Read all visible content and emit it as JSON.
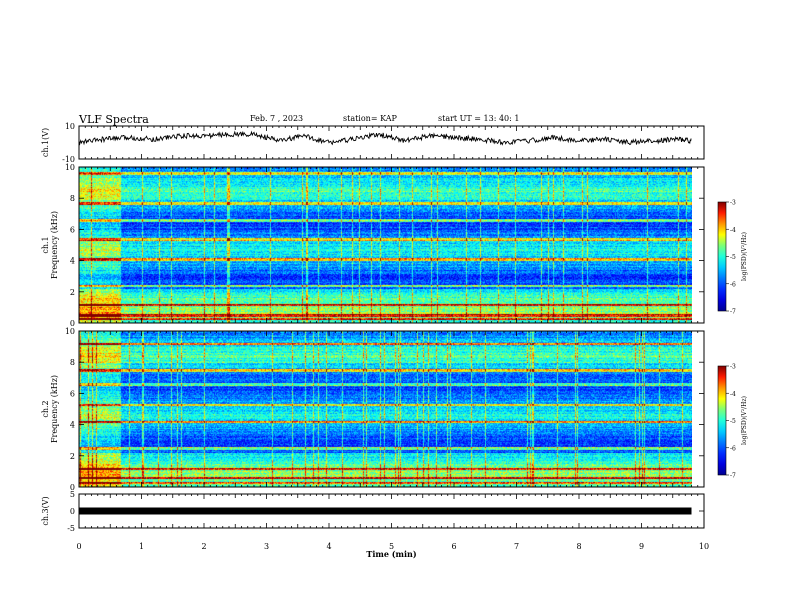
{
  "header": {
    "title": "VLF Spectra",
    "date": "Feb. 7 , 2023",
    "station": "station= KAP",
    "start_ut": "start  UT  =   13: 40: 1"
  },
  "chart_data": [
    {
      "type": "line",
      "panel": "ch1-waveform",
      "ylabel": "ch.1(V)",
      "ylim": [
        -10,
        10
      ],
      "y_ticks": [
        "10",
        "-10"
      ],
      "xlim": [
        0,
        9.8
      ],
      "x": [
        0,
        0.4,
        0.8,
        1.2,
        1.6,
        2.0,
        2.4,
        2.8,
        3.2,
        3.6,
        4.0,
        4.4,
        4.8,
        5.2,
        5.6,
        6.0,
        6.4,
        6.8,
        7.2,
        7.6,
        8.0,
        8.4,
        8.8,
        9.2,
        9.6,
        9.8
      ],
      "values": [
        0,
        2,
        3,
        2,
        4,
        4,
        5,
        5,
        1,
        4,
        0,
        2,
        5,
        1,
        4,
        3,
        2,
        0,
        1,
        3,
        1,
        2,
        0,
        1,
        2,
        1
      ]
    },
    {
      "type": "heatmap",
      "panel": "ch1-spectrogram",
      "ylabel": "ch.1\nFrequency (kHz)",
      "ylim": [
        0,
        10
      ],
      "y_ticks": [
        "0",
        "2",
        "4",
        "6",
        "8",
        "10"
      ],
      "colorbar": {
        "label": "log(PSD)(V²/Hz)",
        "range": [
          -7,
          -3
        ],
        "ticks": [
          "-3",
          "-4",
          "-5",
          "-6",
          "-7"
        ]
      },
      "bright_bands_khz": [
        0.3,
        0.5,
        1.2,
        2.4,
        4.1,
        5.4,
        6.6,
        7.7,
        9.6
      ]
    },
    {
      "type": "heatmap",
      "panel": "ch2-spectrogram",
      "ylabel": "ch.2\nFrequency (kHz)",
      "ylim": [
        0,
        10
      ],
      "y_ticks": [
        "0",
        "2",
        "4",
        "6",
        "8",
        "10"
      ],
      "colorbar": {
        "label": "log(PSD)(V²/Hz)",
        "range": [
          -7,
          -3
        ],
        "ticks": [
          "-3",
          "-4",
          "-5",
          "-6",
          "-7"
        ]
      },
      "bright_bands_khz": [
        0.3,
        0.6,
        1.2,
        2.5,
        4.2,
        5.3,
        6.6,
        7.5,
        9.2
      ]
    },
    {
      "type": "line",
      "panel": "ch3-waveform",
      "ylabel": "ch.3(V)",
      "ylim": [
        -5,
        5
      ],
      "y_ticks": [
        "5",
        "0",
        "-5"
      ],
      "xlim": [
        0,
        9.8
      ],
      "x": [
        0,
        9.8
      ],
      "values": [
        0,
        0
      ]
    }
  ],
  "x_axis": {
    "label": "Time (min)",
    "ticks": [
      "0",
      "1",
      "2",
      "3",
      "4",
      "5",
      "6",
      "7",
      "8",
      "9",
      "10"
    ],
    "range": [
      0,
      10
    ]
  },
  "colors": {
    "line": "#000000",
    "cmap": [
      "#00008f",
      "#0000ff",
      "#00a0ff",
      "#00ffff",
      "#60ff90",
      "#ffff00",
      "#ff8000",
      "#ff0000",
      "#800000"
    ]
  }
}
